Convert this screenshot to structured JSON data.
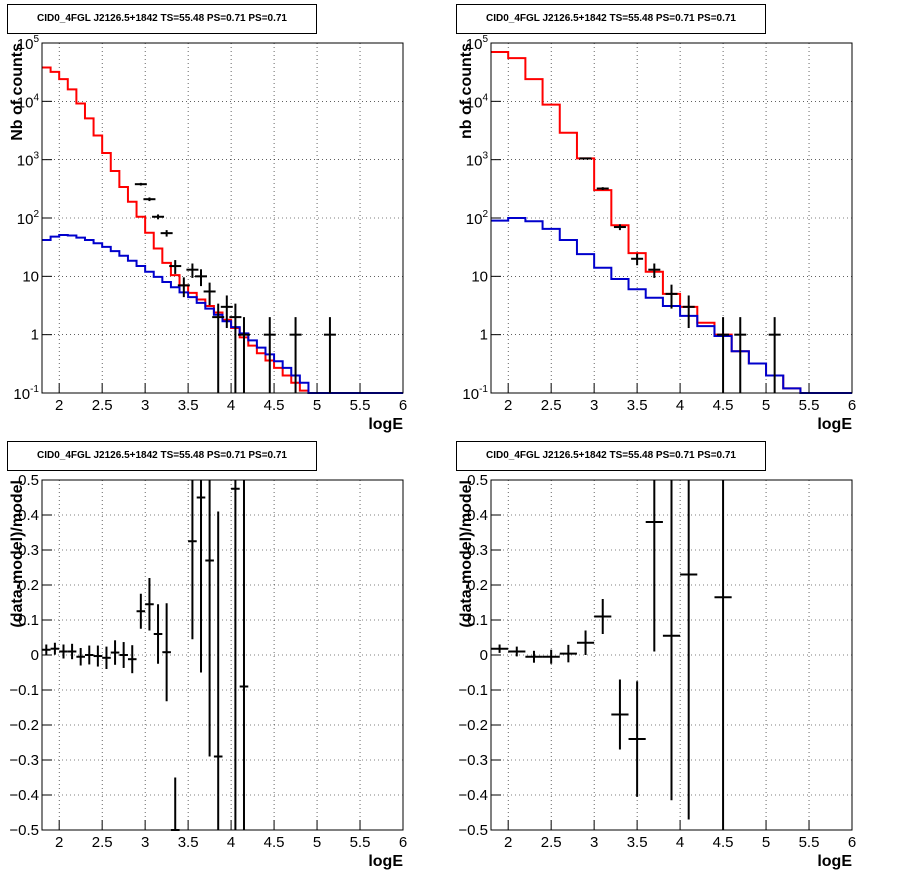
{
  "colors": {
    "data": "#000000",
    "total_model": "#ff0000",
    "background_model": "#0000cc",
    "grid": "#000000"
  },
  "chart_data": [
    {
      "type": "line",
      "title": "CID0_4FGL J2126.5+1842 TS=55.48 PS=0.71 PS=0.71",
      "xlabel": "logE",
      "ylabel": "Nb of counts",
      "xlim": [
        1.8,
        6.0
      ],
      "ylim": [
        0.1,
        100000
      ],
      "yscale": "log",
      "grid": true,
      "x_ticks": [
        "2",
        "2.5",
        "3",
        "3.5",
        "4",
        "4.5",
        "5",
        "5.5",
        "6"
      ],
      "y_ticks": [
        "10^-1",
        "1",
        "10",
        "10^2",
        "10^3",
        "10^4",
        "10^5"
      ],
      "bin_edges": [
        1.8,
        1.9,
        2.0,
        2.1,
        2.2,
        2.3,
        2.4,
        2.5,
        2.6,
        2.7,
        2.8,
        2.9,
        3.0,
        3.1,
        3.2,
        3.3,
        3.4,
        3.5,
        3.6,
        3.7,
        3.8,
        3.9,
        4.0,
        4.1,
        4.2,
        4.3,
        4.4,
        4.5,
        4.6,
        4.7,
        4.8,
        4.9,
        5.0,
        5.1,
        5.2,
        5.3,
        5.4,
        5.5,
        5.6,
        5.7,
        5.8,
        5.9,
        6.0
      ],
      "series": [
        {
          "name": "",
          "kind": "step",
          "color_key": "total_model",
          "values": [
            38000,
            32000,
            24000,
            16000,
            9200,
            5100,
            2600,
            1300,
            640,
            340,
            190,
            105,
            56,
            30,
            17,
            10.5,
            7,
            5.2,
            4,
            3.1,
            2.4,
            1.8,
            1.3,
            0.9,
            0.65,
            0.48,
            0.36,
            0.27,
            0.2,
            0.15,
            0.11,
            0.1,
            0.1,
            0.1,
            0.1,
            0.1,
            0.1,
            0.1,
            0.1,
            0.1,
            0.1,
            0.1
          ]
        },
        {
          "name": "",
          "kind": "step",
          "color_key": "background_model",
          "values": [
            42,
            48,
            51,
            50,
            46,
            42,
            37,
            32,
            27,
            22.5,
            18.5,
            15,
            12,
            9.8,
            8,
            6.5,
            5.3,
            4.4,
            3.5,
            2.8,
            2.2,
            1.7,
            1.35,
            1.05,
            0.8,
            0.6,
            0.46,
            0.35,
            0.27,
            0.2,
            0.15,
            0.1,
            0.1,
            0.1,
            0.1,
            0.1,
            0.1,
            0.1,
            0.1,
            0.1,
            0.1,
            0.1
          ]
        },
        {
          "name": "",
          "kind": "errorbar",
          "color_key": "data",
          "x": [
            2.95,
            3.05,
            3.15,
            3.25,
            3.35,
            3.45,
            3.55,
            3.65,
            3.75,
            3.85,
            3.95,
            4.05,
            4.15,
            4.45,
            4.75,
            5.15
          ],
          "y": [
            380,
            210,
            105,
            55,
            15,
            7,
            13,
            10,
            5.5,
            2,
            3,
            2,
            1,
            1,
            1,
            1
          ],
          "yerr_low": [
            20,
            15,
            10,
            7,
            4,
            2.6,
            3.6,
            3.2,
            2.3,
            1.9,
            1.7,
            1.9,
            0.99,
            0.99,
            0.99,
            0.99
          ],
          "yerr_high": [
            20,
            15,
            10,
            7,
            4,
            2.6,
            3.6,
            3.2,
            2.3,
            1.4,
            1.7,
            1.4,
            1,
            1,
            1,
            1
          ]
        }
      ]
    },
    {
      "type": "line",
      "title": "CID0_4FGL J2126.5+1842 TS=55.48 PS=0.71 PS=0.71",
      "xlabel": "logE",
      "ylabel": "nb of counts",
      "xlim": [
        1.8,
        6.0
      ],
      "ylim": [
        0.1,
        100000
      ],
      "yscale": "log",
      "grid": true,
      "x_ticks": [
        "2",
        "2.5",
        "3",
        "3.5",
        "4",
        "4.5",
        "5",
        "5.5",
        "6"
      ],
      "y_ticks": [
        "10^-1",
        "1",
        "10",
        "10^2",
        "10^3",
        "10^4",
        "10^5"
      ],
      "bin_edges": [
        1.8,
        2.0,
        2.2,
        2.4,
        2.6,
        2.8,
        3.0,
        3.2,
        3.4,
        3.6,
        3.8,
        4.0,
        4.2,
        4.4,
        4.6,
        4.8,
        5.0,
        5.2,
        5.4,
        5.6,
        5.8,
        6.0
      ],
      "series": [
        {
          "name": "",
          "kind": "step",
          "color_key": "total_model",
          "values": [
            70000,
            55000,
            24000,
            8800,
            2900,
            1050,
            300,
            75,
            25,
            12,
            5,
            3,
            1.6,
            1,
            0.52,
            0.32,
            0.2,
            0.12,
            0.1,
            0.1,
            0.1
          ]
        },
        {
          "name": "",
          "kind": "step",
          "color_key": "background_model",
          "values": [
            90,
            100,
            88,
            65,
            42,
            24,
            14,
            9,
            6,
            4.3,
            3.1,
            2.1,
            1.4,
            0.95,
            0.52,
            0.32,
            0.2,
            0.12,
            0.1,
            0.1,
            0.1
          ]
        },
        {
          "name": "",
          "kind": "errorbar",
          "color_key": "data",
          "x": [
            2.9,
            3.1,
            3.3,
            3.5,
            3.7,
            3.9,
            4.1,
            4.5,
            4.7,
            5.1
          ],
          "y": [
            1050,
            320,
            70,
            20,
            13,
            5,
            3,
            1,
            1,
            1
          ],
          "yerr_low": [
            32,
            18,
            8,
            4.5,
            3.6,
            2.2,
            1.7,
            0.99,
            0.99,
            0.99
          ],
          "yerr_high": [
            32,
            18,
            8,
            4.5,
            3.6,
            2.2,
            1.7,
            1,
            1,
            1
          ]
        }
      ]
    },
    {
      "type": "scatter",
      "title": "CID0_4FGL J2126.5+1842 TS=55.48 PS=0.71 PS=0.71",
      "xlabel": "logE",
      "ylabel": "(data-model)/model",
      "xlim": [
        1.8,
        6.0
      ],
      "ylim": [
        -0.5,
        0.5
      ],
      "grid": true,
      "x_ticks": [
        "2",
        "2.5",
        "3",
        "3.5",
        "4",
        "4.5",
        "5",
        "5.5",
        "6"
      ],
      "y_ticks": [
        "−0.5",
        "−0.4",
        "−0.3",
        "−0.2",
        "−0.1",
        "0",
        "0.1",
        "0.2",
        "0.3",
        "0.4",
        "0.5"
      ],
      "series": [
        {
          "name": "",
          "kind": "errorbar",
          "color_key": "data",
          "xerr": 0.05,
          "x": [
            1.85,
            1.95,
            2.05,
            2.15,
            2.25,
            2.35,
            2.45,
            2.55,
            2.65,
            2.75,
            2.85,
            2.95,
            3.05,
            3.15,
            3.25,
            3.35,
            3.55,
            3.65,
            3.75,
            3.85,
            4.05,
            4.15
          ],
          "y": [
            0.015,
            0.018,
            0.01,
            0.01,
            -0.005,
            0.0,
            -0.003,
            -0.008,
            0.007,
            0.0,
            -0.012,
            0.125,
            0.145,
            0.06,
            0.008,
            -0.5,
            0.325,
            0.45,
            0.27,
            -0.29,
            0.475,
            -0.09
          ],
          "yerr": [
            0.015,
            0.017,
            0.02,
            0.022,
            0.025,
            0.027,
            0.03,
            0.032,
            0.035,
            0.037,
            0.04,
            0.05,
            0.075,
            0.085,
            0.14,
            0.15,
            0.28,
            0.5,
            0.56,
            0.7,
            1.0,
            1.2
          ]
        }
      ]
    },
    {
      "type": "scatter",
      "title": "CID0_4FGL J2126.5+1842 TS=55.48 PS=0.71 PS=0.71",
      "xlabel": "logE",
      "ylabel": "(data-model)/model",
      "xlim": [
        1.8,
        6.0
      ],
      "ylim": [
        -0.5,
        0.5
      ],
      "grid": true,
      "x_ticks": [
        "2",
        "2.5",
        "3",
        "3.5",
        "4",
        "4.5",
        "5",
        "5.5",
        "6"
      ],
      "y_ticks": [
        "−0.5",
        "−0.4",
        "−0.3",
        "−0.2",
        "−0.1",
        "0",
        "0.1",
        "0.2",
        "0.3",
        "0.4",
        "0.5"
      ],
      "series": [
        {
          "name": "",
          "kind": "errorbar",
          "color_key": "data",
          "xerr": 0.1,
          "x": [
            1.9,
            2.1,
            2.3,
            2.5,
            2.7,
            2.9,
            3.1,
            3.3,
            3.5,
            3.7,
            3.9,
            4.1,
            4.5
          ],
          "y": [
            0.018,
            0.01,
            -0.005,
            -0.005,
            0.004,
            0.035,
            0.11,
            -0.17,
            -0.24,
            0.38,
            0.055,
            0.23,
            0.165
          ],
          "yerr": [
            0.012,
            0.014,
            0.017,
            0.02,
            0.025,
            0.035,
            0.05,
            0.1,
            0.165,
            0.37,
            0.47,
            0.7,
            1.0
          ]
        }
      ]
    }
  ]
}
